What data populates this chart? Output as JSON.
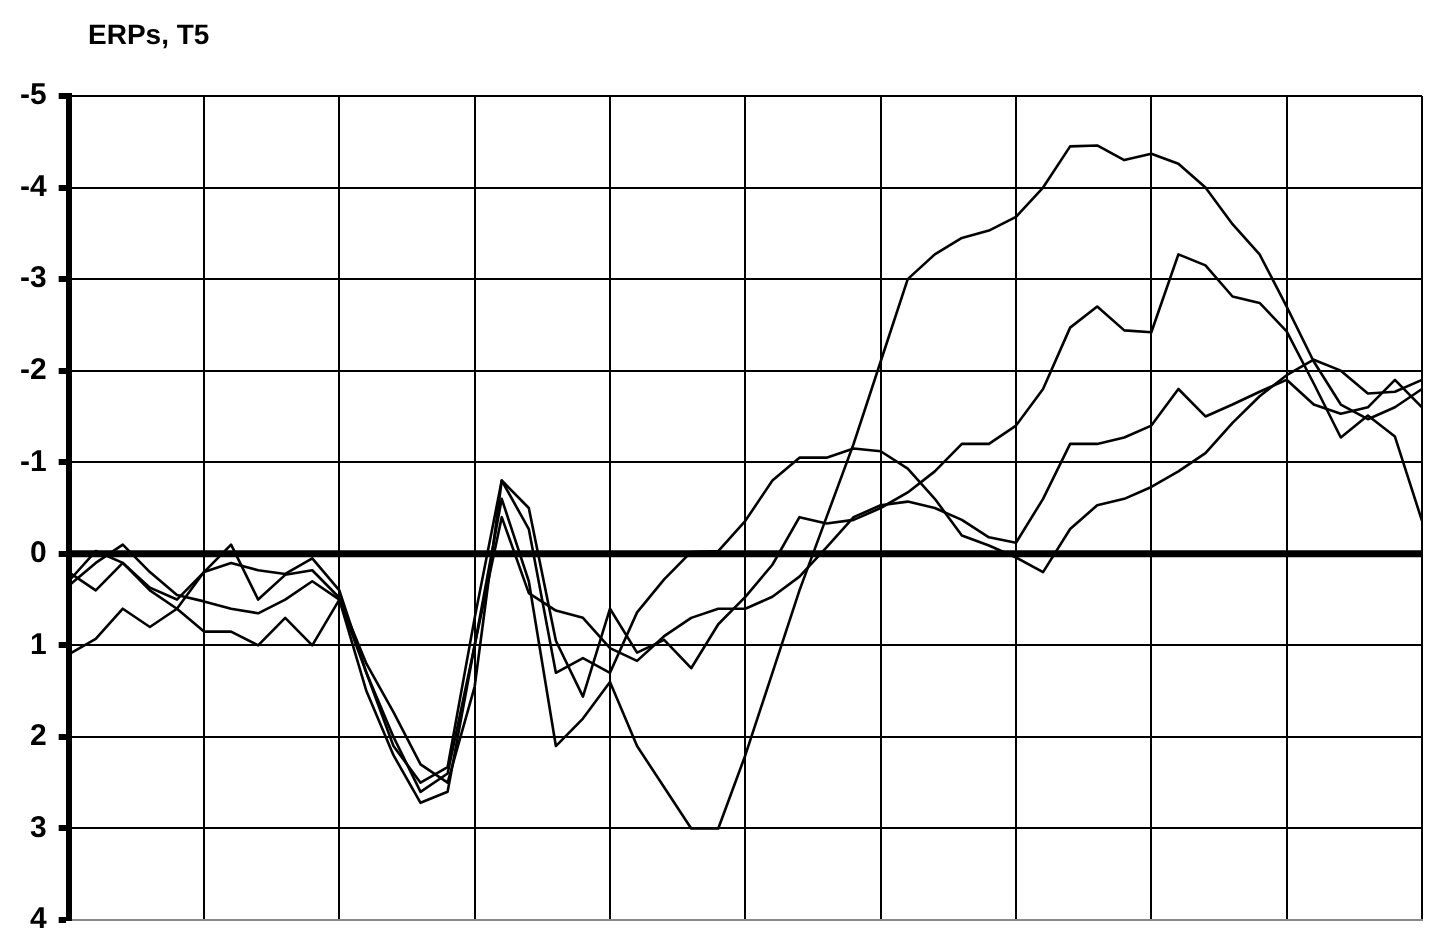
{
  "chart_data": {
    "type": "line",
    "title": "ERPs, T5",
    "categories": [
      null,
      null,
      null,
      null,
      null,
      null,
      null,
      null,
      null,
      null,
      null,
      null,
      null,
      null,
      null,
      null,
      null,
      null,
      null,
      null,
      null,
      null,
      null,
      null,
      null,
      null,
      null,
      null,
      null,
      null,
      null,
      null,
      null,
      null,
      null,
      null,
      null,
      null,
      null,
      null,
      null,
      null,
      null,
      null,
      null,
      null,
      null,
      null,
      null,
      null,
      null
    ],
    "ylim": [
      4,
      -5
    ],
    "yticks": [
      -5,
      -4,
      -3,
      -2,
      -1,
      0,
      1,
      2,
      3,
      4
    ],
    "tick_labels": "y",
    "grid": true,
    "legend": false,
    "marker": "none",
    "line_style": "solid",
    "ref_lines": [
      {
        "axis": "y",
        "value": 0,
        "color": "#000000"
      }
    ],
    "series": [
      {
        "color": "#000000",
        "values": [
          0.35,
          0.1,
          -0.1,
          0.2,
          0.45,
          0.52,
          0.6,
          0.65,
          0.5,
          0.3,
          0.5,
          1.3,
          2.0,
          2.6,
          2.4,
          1.0,
          -0.6,
          0.3,
          2.1,
          1.8,
          1.4,
          2.1,
          2.55,
          3.0,
          3.0,
          2.2,
          1.3,
          0.4,
          -0.4,
          -1.2,
          -2.1,
          -3.0,
          -3.27,
          -3.45,
          -3.53,
          -3.68,
          -4.0,
          -4.45,
          -4.46,
          -4.3,
          -4.37,
          -4.26,
          -4.0,
          -3.6,
          -3.27,
          -2.7,
          -2.1,
          -1.63,
          -1.47,
          -1.6,
          -1.8
        ]
      },
      {
        "color": "#000000",
        "values": [
          0.3,
          -0.03,
          0.1,
          0.37,
          0.5,
          0.2,
          -0.1,
          0.5,
          0.23,
          0.18,
          0.48,
          1.2,
          1.73,
          2.3,
          2.5,
          1.45,
          -0.8,
          -0.5,
          0.95,
          1.56,
          0.6,
          1.08,
          0.94,
          1.25,
          0.77,
          0.47,
          0.12,
          -0.4,
          -0.33,
          -0.37,
          -0.5,
          -0.67,
          -0.9,
          -1.2,
          -1.2,
          -1.4,
          -1.8,
          -2.47,
          -2.7,
          -2.44,
          -2.42,
          -3.27,
          -3.15,
          -2.81,
          -2.74,
          -2.43,
          -1.86,
          -1.27,
          -1.51,
          -1.28,
          -0.36
        ]
      },
      {
        "color": "#000000",
        "values": [
          1.1,
          0.93,
          0.6,
          0.8,
          0.6,
          0.85,
          0.85,
          1.0,
          0.7,
          1.0,
          0.5,
          1.5,
          2.2,
          2.72,
          2.6,
          1.0,
          -0.4,
          0.43,
          0.62,
          0.7,
          1.03,
          1.17,
          0.9,
          0.7,
          0.6,
          0.6,
          0.47,
          0.25,
          -0.07,
          -0.4,
          -0.53,
          -0.57,
          -0.5,
          -0.37,
          -0.18,
          -0.12,
          -0.6,
          -1.2,
          -1.2,
          -1.27,
          -1.4,
          -1.8,
          -1.5,
          -1.63,
          -1.77,
          -1.9,
          -1.63,
          -1.53,
          -1.6,
          -1.9,
          -1.6
        ]
      },
      {
        "color": "#000000",
        "values": [
          0.2,
          0.4,
          0.1,
          0.4,
          0.6,
          0.2,
          0.1,
          0.18,
          0.22,
          0.05,
          0.4,
          1.3,
          2.1,
          2.5,
          2.33,
          0.7,
          -0.8,
          -0.27,
          1.3,
          1.14,
          1.3,
          0.64,
          0.28,
          -0.02,
          -0.03,
          -0.36,
          -0.8,
          -1.05,
          -1.05,
          -1.15,
          -1.12,
          -0.93,
          -0.6,
          -0.2,
          -0.09,
          0.04,
          0.2,
          -0.27,
          -0.53,
          -0.6,
          -0.73,
          -0.9,
          -1.1,
          -1.43,
          -1.72,
          -1.95,
          -2.12,
          -2.0,
          -1.75,
          -1.77,
          -1.9
        ]
      }
    ]
  }
}
